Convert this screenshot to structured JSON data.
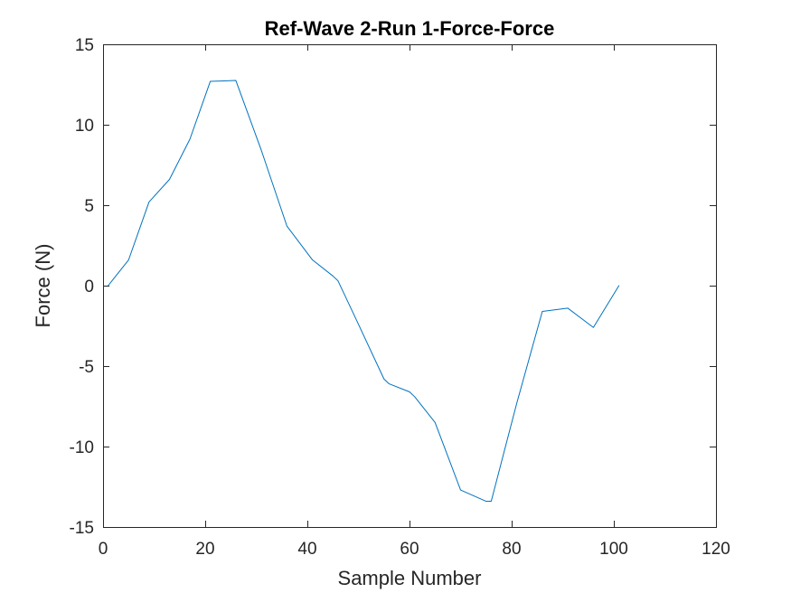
{
  "chart_data": {
    "type": "line",
    "title": "Ref-Wave 2-Run 1-Force-Force",
    "xlabel": "Sample Number",
    "ylabel": "Force (N)",
    "xlim": [
      0,
      120
    ],
    "ylim": [
      -15,
      15
    ],
    "xticks": [
      0,
      20,
      40,
      60,
      80,
      100,
      120
    ],
    "yticks": [
      -15,
      -10,
      -5,
      0,
      5,
      10,
      15
    ],
    "xtick_labels": [
      "0",
      "20",
      "40",
      "60",
      "80",
      "100",
      "120"
    ],
    "ytick_labels": [
      "-15",
      "-10",
      "-5",
      "0",
      "5",
      "10",
      "15"
    ],
    "grid": false,
    "series": [
      {
        "name": "Force",
        "color": "#0072BD",
        "x": [
          1,
          5,
          9,
          13,
          17,
          21,
          26,
          31,
          36,
          41,
          45,
          46,
          50,
          55,
          56,
          60,
          61,
          65,
          70,
          75,
          76,
          81,
          86,
          91,
          96,
          101
        ],
        "y": [
          0,
          1.6,
          5.2,
          6.6,
          9.1,
          12.7,
          12.75,
          8.4,
          3.7,
          1.6,
          0.6,
          0.3,
          -2.4,
          -5.8,
          -6.1,
          -6.6,
          -6.9,
          -8.5,
          -12.7,
          -13.4,
          -13.4,
          -7.3,
          -1.6,
          -1.4,
          -2.6,
          0
        ]
      }
    ]
  }
}
